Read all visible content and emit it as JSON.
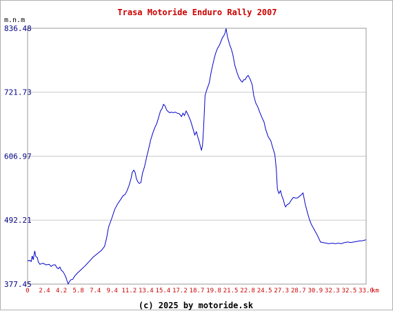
{
  "chart_data": {
    "type": "line",
    "title": "Trasa Motoride Enduro Rally 2007",
    "ylabel": "m.n.m",
    "xunit": "km",
    "footer": "(c) 2025 by motoride.sk",
    "ylim": [
      377.45,
      836.48
    ],
    "xlim": [
      0,
      33.0
    ],
    "yticks": [
      "377.45",
      "492.21",
      "606.97",
      "721.73",
      "836.48"
    ],
    "xticks": [
      "0",
      "2.4",
      "4.2",
      "5.8",
      "7.4",
      "9.4",
      "11.2",
      "13.4",
      "15.4",
      "17.2",
      "18.7",
      "19.8",
      "21.5",
      "22.8",
      "24.5",
      "27.3",
      "28.7",
      "30.9",
      "32.3",
      "32.5",
      "33.0"
    ],
    "grid": true,
    "colors": {
      "title": "#cc0000",
      "xtick": "#cc0000",
      "ytick": "#000080",
      "line": "#0000cc",
      "grid": "#c8c8c8",
      "axis": "#999999",
      "text": "#000000"
    },
    "series": [
      {
        "values": [
          [
            0.0,
            419
          ],
          [
            0.2,
            420
          ],
          [
            0.35,
            418
          ],
          [
            0.45,
            428
          ],
          [
            0.55,
            421
          ],
          [
            0.7,
            437
          ],
          [
            0.8,
            427
          ],
          [
            0.95,
            425
          ],
          [
            1.05,
            417
          ],
          [
            1.2,
            413
          ],
          [
            1.5,
            415
          ],
          [
            1.8,
            412
          ],
          [
            2.1,
            413
          ],
          [
            2.3,
            409
          ],
          [
            2.5,
            412
          ],
          [
            2.7,
            412
          ],
          [
            2.85,
            407
          ],
          [
            3.0,
            405
          ],
          [
            3.15,
            408
          ],
          [
            3.3,
            402
          ],
          [
            3.45,
            400
          ],
          [
            3.6,
            395
          ],
          [
            3.75,
            389
          ],
          [
            3.85,
            383
          ],
          [
            3.95,
            378
          ],
          [
            4.05,
            381
          ],
          [
            4.2,
            385
          ],
          [
            4.4,
            386
          ],
          [
            4.6,
            392
          ],
          [
            4.9,
            398
          ],
          [
            5.2,
            403
          ],
          [
            5.6,
            410
          ],
          [
            6.0,
            418
          ],
          [
            6.4,
            426
          ],
          [
            6.8,
            432
          ],
          [
            7.2,
            438
          ],
          [
            7.5,
            445
          ],
          [
            7.7,
            460
          ],
          [
            7.9,
            480
          ],
          [
            8.2,
            495
          ],
          [
            8.5,
            512
          ],
          [
            8.8,
            522
          ],
          [
            9.1,
            530
          ],
          [
            9.3,
            536
          ],
          [
            9.5,
            538
          ],
          [
            9.7,
            545
          ],
          [
            9.9,
            555
          ],
          [
            10.1,
            568
          ],
          [
            10.2,
            578
          ],
          [
            10.35,
            582
          ],
          [
            10.5,
            577
          ],
          [
            10.6,
            567
          ],
          [
            10.75,
            561
          ],
          [
            10.9,
            558
          ],
          [
            11.05,
            560
          ],
          [
            11.2,
            576
          ],
          [
            11.4,
            588
          ],
          [
            11.6,
            605
          ],
          [
            11.8,
            620
          ],
          [
            12.0,
            636
          ],
          [
            12.2,
            648
          ],
          [
            12.4,
            658
          ],
          [
            12.6,
            666
          ],
          [
            12.8,
            678
          ],
          [
            12.95,
            688
          ],
          [
            13.1,
            692
          ],
          [
            13.25,
            700
          ],
          [
            13.4,
            697
          ],
          [
            13.55,
            690
          ],
          [
            13.7,
            687
          ],
          [
            13.85,
            685
          ],
          [
            14.0,
            686
          ],
          [
            14.2,
            685
          ],
          [
            14.4,
            686
          ],
          [
            14.6,
            684
          ],
          [
            14.8,
            683
          ],
          [
            15.0,
            678
          ],
          [
            15.15,
            684
          ],
          [
            15.3,
            680
          ],
          [
            15.45,
            688
          ],
          [
            15.6,
            683
          ],
          [
            15.75,
            677
          ],
          [
            15.9,
            670
          ],
          [
            16.1,
            658
          ],
          [
            16.3,
            645
          ],
          [
            16.45,
            651
          ],
          [
            16.6,
            641
          ],
          [
            16.75,
            632
          ],
          [
            16.85,
            624
          ],
          [
            16.95,
            618
          ],
          [
            17.05,
            626
          ],
          [
            17.15,
            655
          ],
          [
            17.3,
            716
          ],
          [
            17.5,
            728
          ],
          [
            17.7,
            738
          ],
          [
            17.9,
            758
          ],
          [
            18.1,
            775
          ],
          [
            18.3,
            790
          ],
          [
            18.5,
            800
          ],
          [
            18.7,
            806
          ],
          [
            18.85,
            813
          ],
          [
            19.0,
            820
          ],
          [
            19.1,
            822
          ],
          [
            19.25,
            828
          ],
          [
            19.35,
            836
          ],
          [
            19.5,
            820
          ],
          [
            19.7,
            807
          ],
          [
            19.85,
            800
          ],
          [
            20.0,
            790
          ],
          [
            20.2,
            770
          ],
          [
            20.4,
            758
          ],
          [
            20.6,
            748
          ],
          [
            20.8,
            742
          ],
          [
            20.95,
            740
          ],
          [
            21.05,
            744
          ],
          [
            21.2,
            744
          ],
          [
            21.35,
            749
          ],
          [
            21.5,
            752
          ],
          [
            21.7,
            745
          ],
          [
            21.9,
            735
          ],
          [
            22.05,
            715
          ],
          [
            22.25,
            702
          ],
          [
            22.45,
            695
          ],
          [
            22.65,
            685
          ],
          [
            22.85,
            676
          ],
          [
            23.05,
            668
          ],
          [
            23.2,
            656
          ],
          [
            23.45,
            642
          ],
          [
            23.7,
            635
          ],
          [
            23.9,
            622
          ],
          [
            24.1,
            610
          ],
          [
            24.25,
            583
          ],
          [
            24.35,
            548
          ],
          [
            24.5,
            540
          ],
          [
            24.65,
            545
          ],
          [
            24.8,
            535
          ],
          [
            24.95,
            528
          ],
          [
            25.05,
            520
          ],
          [
            25.15,
            516
          ],
          [
            25.3,
            520
          ],
          [
            25.5,
            522
          ],
          [
            25.7,
            528
          ],
          [
            25.9,
            533
          ],
          [
            26.1,
            532
          ],
          [
            26.3,
            532
          ],
          [
            26.5,
            535
          ],
          [
            26.7,
            538
          ],
          [
            26.85,
            541
          ],
          [
            27.05,
            522
          ],
          [
            27.25,
            508
          ],
          [
            27.45,
            495
          ],
          [
            27.65,
            485
          ],
          [
            27.95,
            475
          ],
          [
            28.25,
            465
          ],
          [
            28.55,
            453
          ],
          [
            28.8,
            452
          ],
          [
            29.1,
            451
          ],
          [
            29.4,
            450
          ],
          [
            29.7,
            451
          ],
          [
            30.0,
            450
          ],
          [
            30.3,
            451
          ],
          [
            30.6,
            450
          ],
          [
            30.9,
            452
          ],
          [
            31.2,
            453
          ],
          [
            31.5,
            452
          ],
          [
            31.8,
            453
          ],
          [
            32.1,
            454
          ],
          [
            32.4,
            455
          ],
          [
            32.6,
            455
          ],
          [
            32.8,
            456
          ],
          [
            33.0,
            457
          ]
        ]
      }
    ]
  }
}
